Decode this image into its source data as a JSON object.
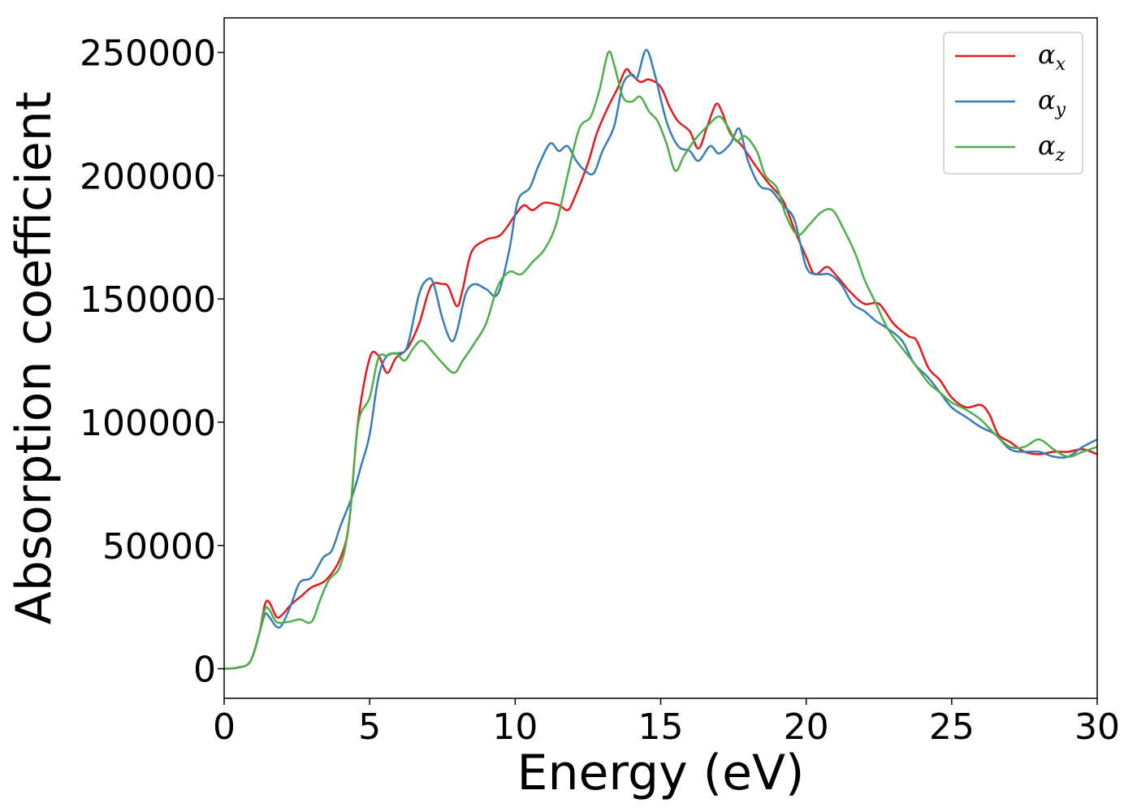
{
  "chart_data": {
    "type": "line",
    "title": "",
    "xlabel": "Energy (eV)",
    "ylabel": "Absorption coefficient",
    "xlim": [
      0,
      30
    ],
    "ylim": [
      -12000,
      264000
    ],
    "xticks": [
      0,
      5,
      10,
      15,
      20,
      25,
      30
    ],
    "yticks": [
      0,
      50000,
      100000,
      150000,
      200000,
      250000
    ],
    "grid": false,
    "legend_position": "top-right",
    "series": [
      {
        "name": "αx",
        "symbol": "α",
        "subscript": "x",
        "color": "#e41a1c",
        "points": [
          [
            0,
            0
          ],
          [
            0.5,
            500
          ],
          [
            0.9,
            3000
          ],
          [
            1.2,
            14000
          ],
          [
            1.4,
            26000
          ],
          [
            1.55,
            27000
          ],
          [
            1.8,
            21000
          ],
          [
            2.0,
            22000
          ],
          [
            2.3,
            26000
          ],
          [
            2.7,
            30000
          ],
          [
            3.0,
            33000
          ],
          [
            3.5,
            36000
          ],
          [
            4.0,
            45000
          ],
          [
            4.3,
            60000
          ],
          [
            4.6,
            100000
          ],
          [
            5.0,
            126000
          ],
          [
            5.3,
            127000
          ],
          [
            5.6,
            120000
          ],
          [
            5.9,
            126000
          ],
          [
            6.3,
            130000
          ],
          [
            6.7,
            140000
          ],
          [
            7.1,
            155000
          ],
          [
            7.5,
            156000
          ],
          [
            7.7,
            155000
          ],
          [
            8.0,
            147000
          ],
          [
            8.2,
            154000
          ],
          [
            8.5,
            169000
          ],
          [
            9.0,
            174000
          ],
          [
            9.5,
            176000
          ],
          [
            10.0,
            184000
          ],
          [
            10.3,
            188000
          ],
          [
            10.6,
            186000
          ],
          [
            11.0,
            189000
          ],
          [
            11.5,
            188000
          ],
          [
            11.8,
            186000
          ],
          [
            12.0,
            190000
          ],
          [
            12.5,
            205000
          ],
          [
            12.8,
            217000
          ],
          [
            13.2,
            228000
          ],
          [
            13.5,
            235000
          ],
          [
            13.8,
            243000
          ],
          [
            14.0,
            241000
          ],
          [
            14.3,
            238000
          ],
          [
            14.6,
            239000
          ],
          [
            15.0,
            236000
          ],
          [
            15.3,
            228000
          ],
          [
            15.6,
            222000
          ],
          [
            16.0,
            218000
          ],
          [
            16.3,
            211000
          ],
          [
            16.6,
            220000
          ],
          [
            16.9,
            229000
          ],
          [
            17.1,
            226000
          ],
          [
            17.4,
            217000
          ],
          [
            17.8,
            212000
          ],
          [
            18.2,
            205000
          ],
          [
            18.7,
            197000
          ],
          [
            19.2,
            190000
          ],
          [
            19.6,
            178000
          ],
          [
            20.0,
            167000
          ],
          [
            20.3,
            160000
          ],
          [
            20.7,
            163000
          ],
          [
            21.0,
            160000
          ],
          [
            21.5,
            153000
          ],
          [
            22.0,
            148000
          ],
          [
            22.5,
            148000
          ],
          [
            23.0,
            140000
          ],
          [
            23.5,
            135000
          ],
          [
            23.8,
            133000
          ],
          [
            24.2,
            122000
          ],
          [
            24.6,
            117000
          ],
          [
            25.0,
            110000
          ],
          [
            25.5,
            106000
          ],
          [
            26.0,
            107000
          ],
          [
            26.3,
            103000
          ],
          [
            26.6,
            95000
          ],
          [
            27.0,
            92000
          ],
          [
            27.5,
            88000
          ],
          [
            28.0,
            87000
          ],
          [
            28.5,
            88000
          ],
          [
            29.0,
            88000
          ],
          [
            29.5,
            89000
          ],
          [
            30.0,
            87000
          ]
        ]
      },
      {
        "name": "αy",
        "symbol": "α",
        "subscript": "y",
        "color": "#377eb8",
        "points": [
          [
            0,
            0
          ],
          [
            0.5,
            500
          ],
          [
            0.9,
            3000
          ],
          [
            1.2,
            14000
          ],
          [
            1.4,
            22000
          ],
          [
            1.55,
            21000
          ],
          [
            1.8,
            17000
          ],
          [
            2.0,
            18000
          ],
          [
            2.3,
            26000
          ],
          [
            2.6,
            35000
          ],
          [
            3.0,
            37000
          ],
          [
            3.4,
            45000
          ],
          [
            3.7,
            48000
          ],
          [
            4.0,
            58000
          ],
          [
            4.4,
            70000
          ],
          [
            4.7,
            82000
          ],
          [
            5.0,
            95000
          ],
          [
            5.3,
            118000
          ],
          [
            5.6,
            127000
          ],
          [
            6.0,
            128000
          ],
          [
            6.3,
            131000
          ],
          [
            6.7,
            152000
          ],
          [
            7.0,
            158000
          ],
          [
            7.2,
            156000
          ],
          [
            7.5,
            142000
          ],
          [
            7.8,
            133000
          ],
          [
            8.0,
            137000
          ],
          [
            8.3,
            152000
          ],
          [
            8.6,
            156000
          ],
          [
            9.0,
            154000
          ],
          [
            9.4,
            152000
          ],
          [
            9.8,
            170000
          ],
          [
            10.1,
            190000
          ],
          [
            10.5,
            195000
          ],
          [
            10.8,
            204000
          ],
          [
            11.2,
            213000
          ],
          [
            11.5,
            210000
          ],
          [
            11.8,
            212000
          ],
          [
            12.1,
            206000
          ],
          [
            12.4,
            202000
          ],
          [
            12.7,
            201000
          ],
          [
            13.0,
            210000
          ],
          [
            13.4,
            220000
          ],
          [
            13.7,
            237000
          ],
          [
            14.0,
            241000
          ],
          [
            14.2,
            240000
          ],
          [
            14.5,
            251000
          ],
          [
            14.8,
            241000
          ],
          [
            15.2,
            222000
          ],
          [
            15.6,
            212000
          ],
          [
            16.0,
            210000
          ],
          [
            16.3,
            206000
          ],
          [
            16.7,
            212000
          ],
          [
            17.0,
            209000
          ],
          [
            17.4,
            213000
          ],
          [
            17.7,
            219000
          ],
          [
            18.0,
            206000
          ],
          [
            18.4,
            196000
          ],
          [
            18.8,
            194000
          ],
          [
            19.2,
            188000
          ],
          [
            19.6,
            182000
          ],
          [
            20.0,
            163000
          ],
          [
            20.4,
            160000
          ],
          [
            20.8,
            160000
          ],
          [
            21.2,
            156000
          ],
          [
            21.6,
            148000
          ],
          [
            22.0,
            145000
          ],
          [
            22.4,
            141000
          ],
          [
            22.8,
            138000
          ],
          [
            23.3,
            133000
          ],
          [
            23.7,
            124000
          ],
          [
            24.2,
            118000
          ],
          [
            24.6,
            112000
          ],
          [
            25.0,
            106000
          ],
          [
            25.5,
            102000
          ],
          [
            26.0,
            98000
          ],
          [
            26.5,
            95000
          ],
          [
            27.0,
            89000
          ],
          [
            27.5,
            88000
          ],
          [
            28.0,
            88000
          ],
          [
            28.5,
            86000
          ],
          [
            29.0,
            86000
          ],
          [
            29.5,
            90000
          ],
          [
            30.0,
            93000
          ]
        ]
      },
      {
        "name": "αz",
        "symbol": "α",
        "subscript": "z",
        "color": "#4daf4a",
        "points": [
          [
            0,
            0
          ],
          [
            0.5,
            500
          ],
          [
            0.9,
            3000
          ],
          [
            1.2,
            14000
          ],
          [
            1.4,
            24000
          ],
          [
            1.55,
            24000
          ],
          [
            1.8,
            19000
          ],
          [
            2.2,
            19000
          ],
          [
            2.6,
            20000
          ],
          [
            3.0,
            19000
          ],
          [
            3.3,
            28000
          ],
          [
            3.6,
            36000
          ],
          [
            4.0,
            42000
          ],
          [
            4.3,
            60000
          ],
          [
            4.6,
            99000
          ],
          [
            5.0,
            110000
          ],
          [
            5.3,
            126000
          ],
          [
            5.6,
            127000
          ],
          [
            5.9,
            128000
          ],
          [
            6.2,
            125000
          ],
          [
            6.5,
            130000
          ],
          [
            6.8,
            133000
          ],
          [
            7.2,
            128000
          ],
          [
            7.5,
            124000
          ],
          [
            7.9,
            120000
          ],
          [
            8.2,
            125000
          ],
          [
            8.6,
            132000
          ],
          [
            9.0,
            140000
          ],
          [
            9.4,
            155000
          ],
          [
            9.8,
            161000
          ],
          [
            10.2,
            160000
          ],
          [
            10.6,
            165000
          ],
          [
            11.0,
            170000
          ],
          [
            11.4,
            180000
          ],
          [
            11.8,
            200000
          ],
          [
            12.2,
            219000
          ],
          [
            12.6,
            224000
          ],
          [
            12.9,
            235000
          ],
          [
            13.2,
            250000
          ],
          [
            13.4,
            245000
          ],
          [
            13.7,
            232000
          ],
          [
            14.0,
            230000
          ],
          [
            14.3,
            232000
          ],
          [
            14.6,
            226000
          ],
          [
            14.9,
            222000
          ],
          [
            15.2,
            213000
          ],
          [
            15.5,
            202000
          ],
          [
            15.8,
            208000
          ],
          [
            16.2,
            215000
          ],
          [
            16.6,
            220000
          ],
          [
            17.0,
            224000
          ],
          [
            17.3,
            220000
          ],
          [
            17.6,
            214000
          ],
          [
            17.9,
            216000
          ],
          [
            18.3,
            210000
          ],
          [
            18.6,
            200000
          ],
          [
            19.0,
            195000
          ],
          [
            19.3,
            184000
          ],
          [
            19.7,
            176000
          ],
          [
            20.1,
            180000
          ],
          [
            20.5,
            185000
          ],
          [
            20.9,
            186000
          ],
          [
            21.3,
            178000
          ],
          [
            21.7,
            168000
          ],
          [
            22.0,
            158000
          ],
          [
            22.4,
            148000
          ],
          [
            22.8,
            138000
          ],
          [
            23.3,
            130000
          ],
          [
            23.7,
            124000
          ],
          [
            24.2,
            116000
          ],
          [
            24.6,
            112000
          ],
          [
            25.0,
            108000
          ],
          [
            25.5,
            105000
          ],
          [
            26.0,
            101000
          ],
          [
            26.5,
            95000
          ],
          [
            27.0,
            90000
          ],
          [
            27.5,
            90000
          ],
          [
            28.0,
            93000
          ],
          [
            28.5,
            89000
          ],
          [
            29.0,
            86000
          ],
          [
            29.5,
            88000
          ],
          [
            30.0,
            90000
          ]
        ]
      }
    ]
  }
}
